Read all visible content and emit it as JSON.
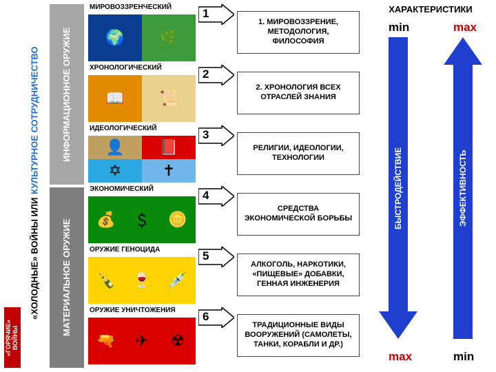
{
  "leftbar": {
    "hotwars": "«ГОРЯЧИЕ» ВОЙНЫ",
    "title_line1": "«ХОЛОДНЫЕ» ВОЙНЫ  ИЛИ",
    "title_line2": "КУЛЬТУРНОЕ  СОТРУДНИЧЕСТВО"
  },
  "categories": {
    "info": "ИНФОРМАЦИОННОЕ ОРУЖИЕ",
    "material": "МАТЕРИАЛЬНОЕ ОРУЖИЕ"
  },
  "rows": [
    {
      "header": "МИРОВОЗЗРЕНЧЕСКИЙ",
      "num": "1",
      "desc": "1. МИРОВОЗЗРЕНИЕ, МЕТОДОЛОГИЯ, ФИЛОСОФИЯ",
      "tiles": [
        {
          "bg": "#0b3d91",
          "glyph": "🌍"
        },
        {
          "bg": "#3b9b3b",
          "glyph": "🌿"
        }
      ]
    },
    {
      "header": "ХРОНОЛОГИЧЕСКИЙ",
      "num": "2",
      "desc": "2. ХРОНОЛОГИЯ ВСЕХ ОТРАСЛЕЙ ЗНАНИЯ",
      "tiles": [
        {
          "bg": "#e38b00",
          "glyph": "📖"
        },
        {
          "bg": "#e8d18a",
          "glyph": "📜"
        }
      ]
    },
    {
      "header": "ИДЕОЛОГИЧЕСКИЙ",
      "num": "3",
      "desc": "РЕЛИГИИ, ИДЕОЛОГИИ, ТЕХНОЛОГИИ",
      "tiles": [
        {
          "bg": "#c0a060",
          "glyph": "👤"
        },
        {
          "bg": "#d90000",
          "glyph": "📕"
        },
        {
          "bg": "#2aa7e0",
          "glyph": "✡"
        },
        {
          "bg": "#6fb7e8",
          "glyph": "✝"
        }
      ]
    },
    {
      "header": "ЭКОНОМИЧЕСКИЙ",
      "num": "4",
      "desc": "СРЕДСТВА ЭКОНОМИЧЕСКОЙ БОРЬБЫ",
      "tiles": [
        {
          "bg": "#0a8a0a",
          "glyph": "💰"
        },
        {
          "bg": "#0a8a0a",
          "glyph": "＄"
        },
        {
          "bg": "#0a8a0a",
          "glyph": "🪙"
        }
      ]
    },
    {
      "header": "ОРУЖИЕ ГЕНОЦИДА",
      "num": "5",
      "desc": "АЛКОГОЛЬ, НАРКОТИКИ, «ПИЩЕВЫЕ» ДОБАВКИ, ГЕННАЯ ИНЖЕНЕРИЯ",
      "tiles": [
        {
          "bg": "#ffd300",
          "glyph": "🍾"
        },
        {
          "bg": "#ffd300",
          "glyph": "🍷"
        },
        {
          "bg": "#ffd300",
          "glyph": "💉"
        }
      ]
    },
    {
      "header": "ОРУЖИЕ УНИЧТОЖЕНИЯ",
      "num": "6",
      "desc": "ТРАДИЦИОННЫЕ ВИДЫ ВООРУЖЕНИЙ (САМОЛЕТЫ, ТАНКИ, КОРАБЛИ И ДР.)",
      "tiles": [
        {
          "bg": "#d90000",
          "glyph": "🔫"
        },
        {
          "bg": "#d90000",
          "glyph": "✈"
        },
        {
          "bg": "#d90000",
          "glyph": "☢"
        }
      ]
    }
  ],
  "char": {
    "title": "ХАРАКТЕРИСТИКИ",
    "min": "min",
    "max": "max",
    "speed": "БЫСТРОДЕЙСТВИЕ",
    "effectiveness": "ЭФФЕКТИВНОСТЬ",
    "arrow_color": "#1f3fcf"
  },
  "style": {
    "red": "#c00000",
    "gray_light": "#a6a6a6",
    "gray_dark": "#7f7f7f",
    "border": "#444444"
  }
}
